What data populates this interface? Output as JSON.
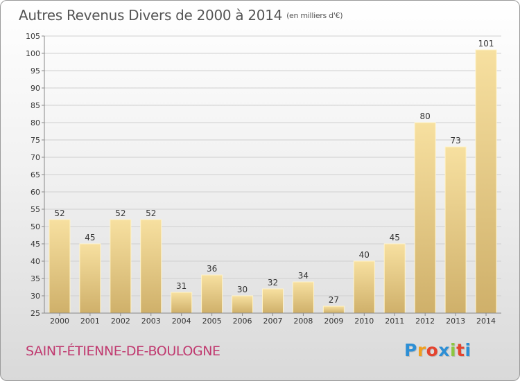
{
  "chart_title": "Autres Revenus Divers de 2000 à 2014",
  "chart_unit": "(en milliers d'€)",
  "commune": "SAINT-ÉTIENNE-DE-BOULOGNE",
  "logo": {
    "letters": [
      "P",
      "r",
      "o",
      "x",
      "i",
      "t",
      "i"
    ],
    "colors": [
      "#2d8fd5",
      "#f0a020",
      "#e4442f",
      "#2d8fd5",
      "#8cc63f",
      "#e4442f",
      "#2d8fd5"
    ]
  },
  "chart_data": {
    "type": "bar",
    "title": "Autres Revenus Divers de 2000 à 2014",
    "subtitle": "(en milliers d'€)",
    "categories": [
      "2000",
      "2001",
      "2002",
      "2003",
      "2004",
      "2005",
      "2006",
      "2007",
      "2008",
      "2009",
      "2010",
      "2011",
      "2012",
      "2013",
      "2014"
    ],
    "values": [
      52,
      45,
      52,
      52,
      31,
      36,
      30,
      32,
      34,
      27,
      40,
      45,
      80,
      73,
      101
    ],
    "ylim": [
      25,
      105
    ],
    "yticks": [
      25,
      30,
      35,
      40,
      45,
      50,
      55,
      60,
      65,
      70,
      75,
      80,
      85,
      90,
      95,
      100,
      105
    ],
    "grid": true,
    "colors": {
      "bar_top": "#f7e0a0",
      "bar_bottom": "#cfb06a",
      "grid": "#cfcfcf",
      "axis": "#888888",
      "label": "#333333"
    }
  }
}
